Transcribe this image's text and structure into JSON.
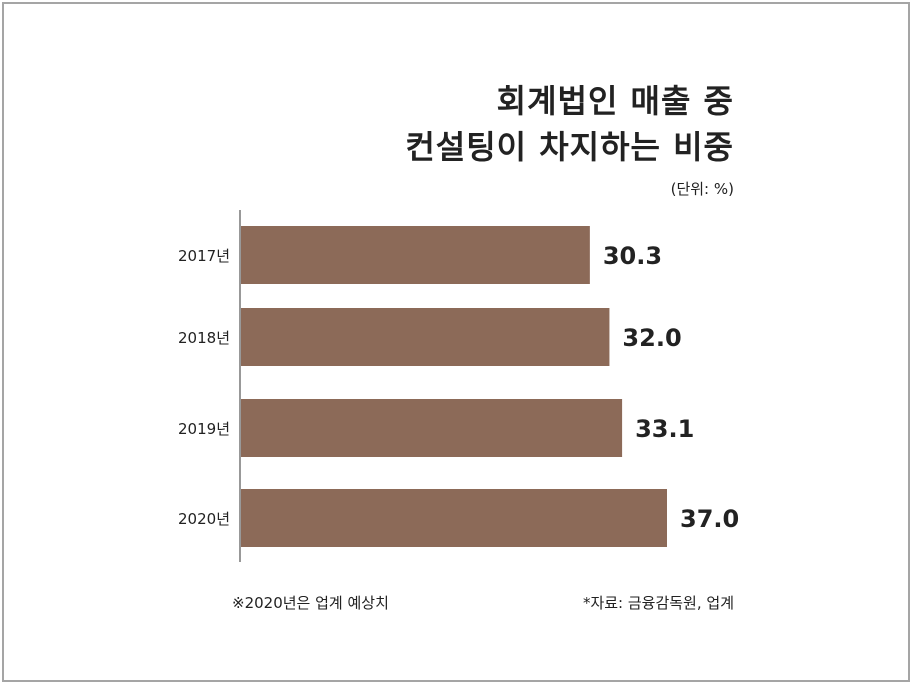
{
  "header": {
    "title_line1": "회계법인 매출 중",
    "title_line2": "컨설팅이 차지하는 비중",
    "unit": "(단위: %)"
  },
  "footer": {
    "note": "※2020년은 업계 예상치",
    "source": "*자료: 금융감독원, 업계"
  },
  "colors": {
    "bar": "#8c6a58",
    "axis": "#555555",
    "text": "#222222"
  },
  "chart_data": {
    "type": "bar",
    "orientation": "horizontal",
    "title": "회계법인 매출 중 컨설팅이 차지하는 비중",
    "categories": [
      "2017년",
      "2018년",
      "2019년",
      "2020년"
    ],
    "values": [
      30.3,
      32.0,
      33.1,
      37.0
    ],
    "value_labels": [
      "30.3",
      "32.0",
      "33.1",
      "37.0"
    ],
    "unit": "%",
    "grid": false,
    "legend": "none"
  }
}
